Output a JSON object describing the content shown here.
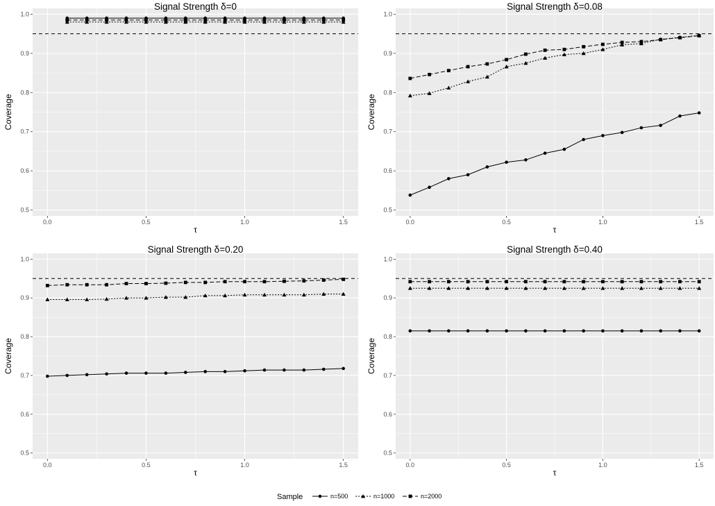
{
  "chart_data": [
    {
      "type": "line",
      "title": "Signal Strength δ=0",
      "xlabel": "τ",
      "ylabel": "Coverage",
      "xlim": [
        -0.075,
        1.575
      ],
      "ylim": [
        0.485,
        1.015
      ],
      "xticks": [
        "0.0",
        "0.5",
        "1.0",
        "1.5"
      ],
      "yticks": [
        "0.5",
        "0.6",
        "0.7",
        "0.8",
        "0.9",
        "1.0"
      ],
      "reference_line": 0.95,
      "x": [
        0.1,
        0.2,
        0.3,
        0.4,
        0.5,
        0.6,
        0.7,
        0.8,
        0.9,
        1.0,
        1.1,
        1.2,
        1.3,
        1.4,
        1.5
      ],
      "series": [
        {
          "name": "n=500",
          "values": [
            0.99,
            0.99,
            0.99,
            0.99,
            0.99,
            0.99,
            0.99,
            0.99,
            0.99,
            0.99,
            0.99,
            0.99,
            0.99,
            0.99,
            0.99
          ]
        },
        {
          "name": "n=1000",
          "values": [
            0.98,
            0.98,
            0.98,
            0.98,
            0.98,
            0.98,
            0.98,
            0.98,
            0.98,
            0.98,
            0.98,
            0.98,
            0.98,
            0.98,
            0.98
          ]
        },
        {
          "name": "n=2000",
          "values": [
            0.985,
            0.985,
            0.985,
            0.985,
            0.985,
            0.985,
            0.985,
            0.985,
            0.985,
            0.985,
            0.985,
            0.985,
            0.985,
            0.985,
            0.985
          ]
        }
      ]
    },
    {
      "type": "line",
      "title": "Signal Strength δ=0.08",
      "xlabel": "τ",
      "ylabel": "Coverage",
      "xlim": [
        -0.075,
        1.575
      ],
      "ylim": [
        0.485,
        1.015
      ],
      "xticks": [
        "0.0",
        "0.5",
        "1.0",
        "1.5"
      ],
      "yticks": [
        "0.5",
        "0.6",
        "0.7",
        "0.8",
        "0.9",
        "1.0"
      ],
      "reference_line": 0.95,
      "x": [
        0.0,
        0.1,
        0.2,
        0.3,
        0.4,
        0.5,
        0.6,
        0.7,
        0.8,
        0.9,
        1.0,
        1.1,
        1.2,
        1.3,
        1.4,
        1.5
      ],
      "series": [
        {
          "name": "n=500",
          "values": [
            0.538,
            0.558,
            0.58,
            0.59,
            0.61,
            0.622,
            0.628,
            0.645,
            0.655,
            0.68,
            0.69,
            0.698,
            0.71,
            0.716,
            0.74,
            0.748
          ]
        },
        {
          "name": "n=1000",
          "values": [
            0.792,
            0.798,
            0.812,
            0.828,
            0.84,
            0.866,
            0.875,
            0.888,
            0.897,
            0.9,
            0.91,
            0.922,
            0.925,
            0.936,
            0.941,
            0.946
          ]
        },
        {
          "name": "n=2000",
          "values": [
            0.836,
            0.846,
            0.856,
            0.866,
            0.873,
            0.884,
            0.898,
            0.908,
            0.91,
            0.917,
            0.923,
            0.928,
            0.93,
            0.935,
            0.94,
            0.945
          ]
        }
      ]
    },
    {
      "type": "line",
      "title": "Signal Strength δ=0.20",
      "xlabel": "τ",
      "ylabel": "Coverage",
      "xlim": [
        -0.075,
        1.575
      ],
      "ylim": [
        0.485,
        1.015
      ],
      "xticks": [
        "0.0",
        "0.5",
        "1.0",
        "1.5"
      ],
      "yticks": [
        "0.5",
        "0.6",
        "0.7",
        "0.8",
        "0.9",
        "1.0"
      ],
      "reference_line": 0.95,
      "x": [
        0.0,
        0.1,
        0.2,
        0.3,
        0.4,
        0.5,
        0.6,
        0.7,
        0.8,
        0.9,
        1.0,
        1.1,
        1.2,
        1.3,
        1.4,
        1.5
      ],
      "series": [
        {
          "name": "n=500",
          "values": [
            0.698,
            0.7,
            0.702,
            0.704,
            0.706,
            0.706,
            0.706,
            0.708,
            0.71,
            0.71,
            0.712,
            0.714,
            0.714,
            0.714,
            0.716,
            0.718
          ]
        },
        {
          "name": "n=1000",
          "values": [
            0.896,
            0.896,
            0.896,
            0.897,
            0.9,
            0.9,
            0.902,
            0.902,
            0.906,
            0.906,
            0.908,
            0.908,
            0.908,
            0.908,
            0.91,
            0.91
          ]
        },
        {
          "name": "n=2000",
          "values": [
            0.932,
            0.934,
            0.934,
            0.934,
            0.937,
            0.937,
            0.938,
            0.94,
            0.94,
            0.942,
            0.942,
            0.942,
            0.943,
            0.944,
            0.946,
            0.948
          ]
        }
      ]
    },
    {
      "type": "line",
      "title": "Signal Strength δ=0.40",
      "xlabel": "τ",
      "ylabel": "Coverage",
      "xlim": [
        -0.075,
        1.575
      ],
      "ylim": [
        0.485,
        1.015
      ],
      "xticks": [
        "0.0",
        "0.5",
        "1.0",
        "1.5"
      ],
      "yticks": [
        "0.5",
        "0.6",
        "0.7",
        "0.8",
        "0.9",
        "1.0"
      ],
      "reference_line": 0.95,
      "x": [
        0.0,
        0.1,
        0.2,
        0.3,
        0.4,
        0.5,
        0.6,
        0.7,
        0.8,
        0.9,
        1.0,
        1.1,
        1.2,
        1.3,
        1.4,
        1.5
      ],
      "series": [
        {
          "name": "n=500",
          "values": [
            0.815,
            0.815,
            0.815,
            0.815,
            0.815,
            0.815,
            0.815,
            0.815,
            0.815,
            0.815,
            0.815,
            0.815,
            0.815,
            0.815,
            0.815,
            0.815
          ]
        },
        {
          "name": "n=1000",
          "values": [
            0.925,
            0.925,
            0.925,
            0.925,
            0.925,
            0.925,
            0.925,
            0.925,
            0.925,
            0.925,
            0.925,
            0.925,
            0.925,
            0.925,
            0.925,
            0.925
          ]
        },
        {
          "name": "n=2000",
          "values": [
            0.942,
            0.942,
            0.942,
            0.942,
            0.942,
            0.942,
            0.942,
            0.942,
            0.942,
            0.942,
            0.942,
            0.942,
            0.942,
            0.942,
            0.942,
            0.942
          ]
        }
      ]
    }
  ],
  "legend": {
    "title": "Sample",
    "position": "bottom",
    "items": [
      {
        "label": "n=500",
        "linestyle": "solid",
        "marker": "circle"
      },
      {
        "label": "n=1000",
        "linestyle": "dotted",
        "marker": "triangle"
      },
      {
        "label": "n=2000",
        "linestyle": "dashed",
        "marker": "square"
      }
    ]
  },
  "colors": {
    "panel_background": "#ebebeb",
    "grid": "#ffffff",
    "series": "#000000",
    "tick_text": "#4d4d4d"
  }
}
